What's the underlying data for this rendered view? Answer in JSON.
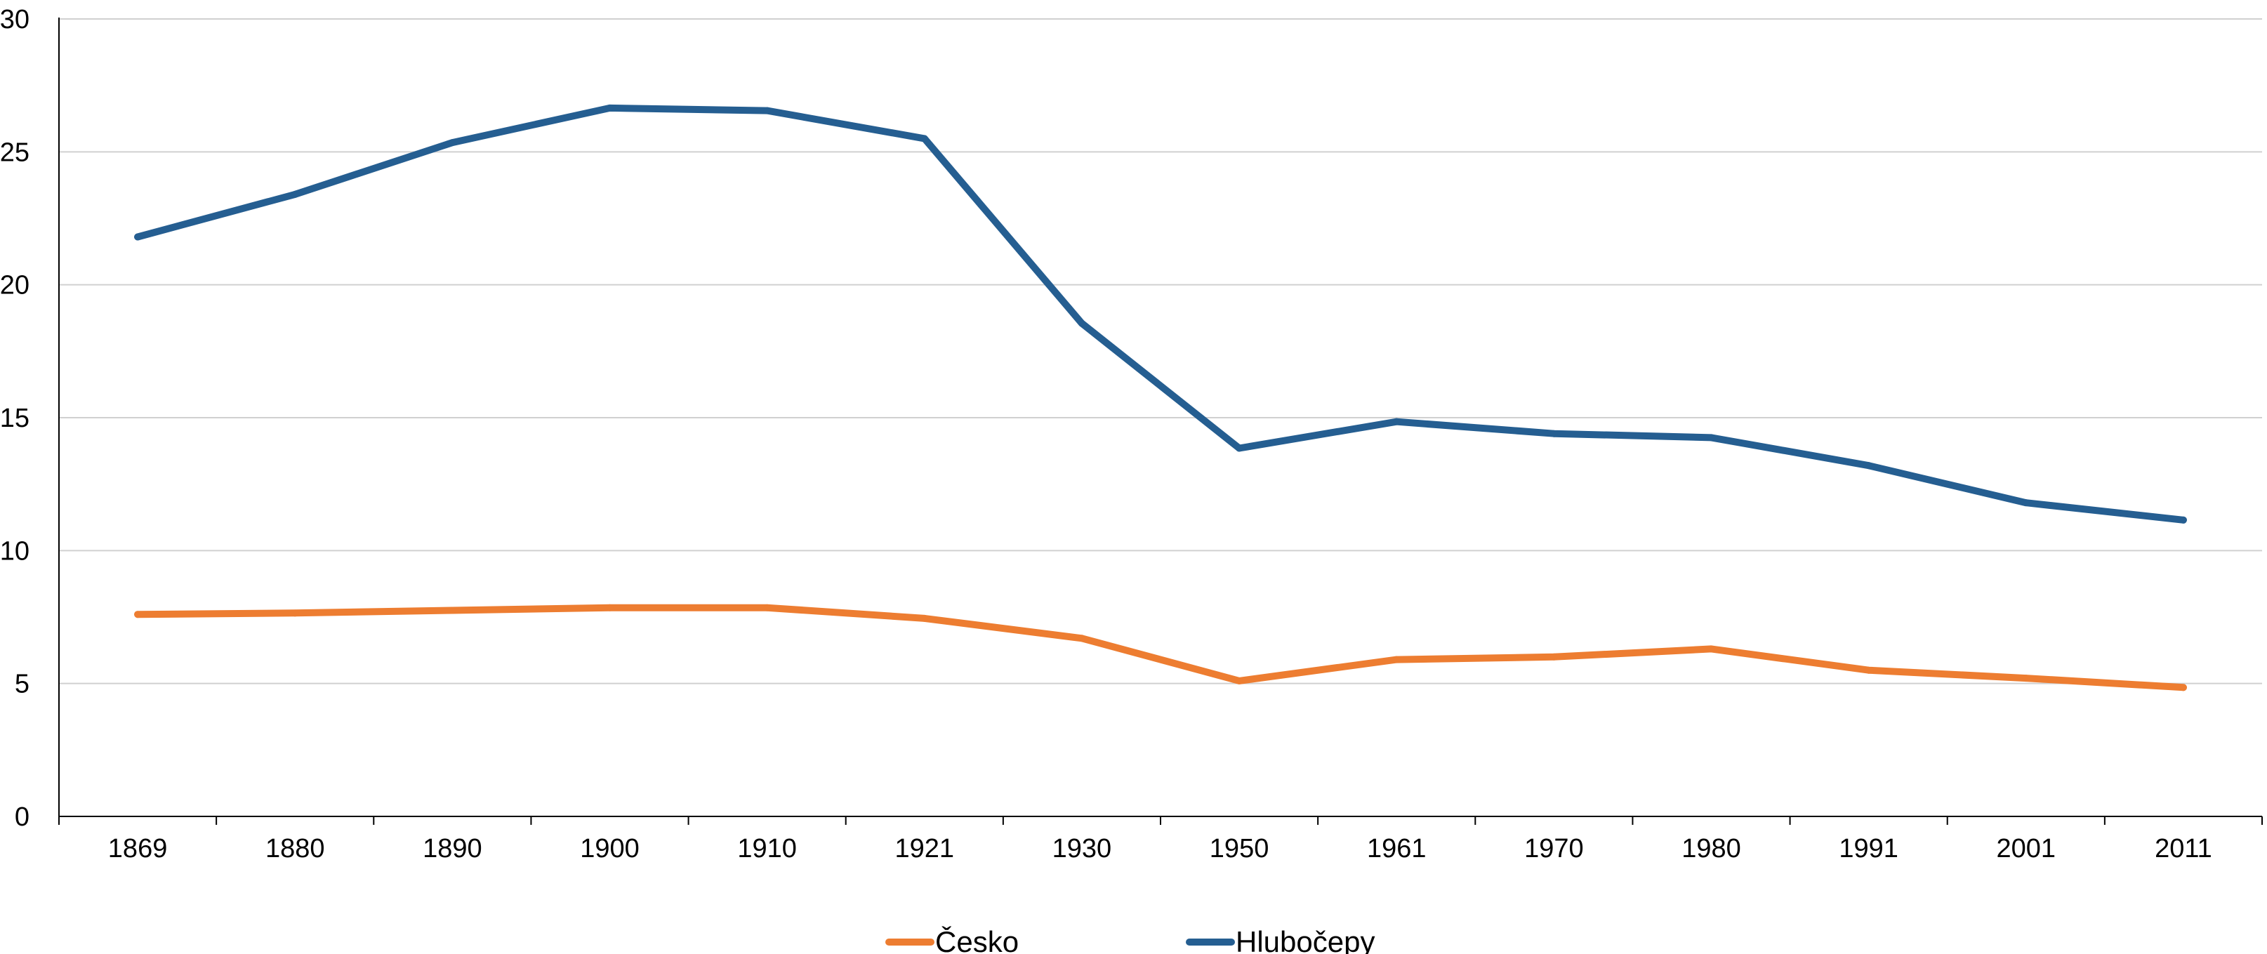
{
  "chart_data": {
    "type": "line",
    "title": "",
    "xlabel": "",
    "ylabel": "",
    "categories": [
      "1869",
      "1880",
      "1890",
      "1900",
      "1910",
      "1921",
      "1930",
      "1950",
      "1961",
      "1970",
      "1980",
      "1991",
      "2001",
      "2011"
    ],
    "ylim": [
      0,
      30
    ],
    "yticks": [
      "0",
      "5",
      "10",
      "15",
      "20",
      "25",
      "30"
    ],
    "grid": true,
    "legend_position": "bottom",
    "series": [
      {
        "name": "Česko",
        "color": "#ED7D31",
        "values": [
          7.6,
          7.65,
          7.75,
          7.85,
          7.85,
          7.45,
          6.7,
          5.1,
          5.9,
          6.0,
          6.3,
          5.5,
          5.2,
          4.85
        ]
      },
      {
        "name": "Hlubočepy",
        "color": "#255E91",
        "values": [
          21.8,
          23.4,
          25.35,
          26.65,
          26.55,
          25.5,
          18.55,
          13.85,
          14.85,
          14.4,
          14.25,
          13.2,
          11.8,
          11.15
        ]
      }
    ]
  }
}
